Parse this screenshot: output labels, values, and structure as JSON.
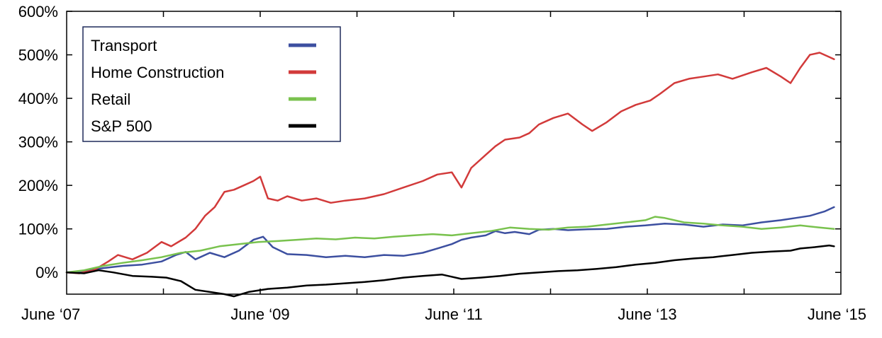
{
  "chart_data": {
    "type": "line",
    "title": "",
    "xlabel": "",
    "ylabel": "",
    "x_ticks": [
      {
        "value": 2007.42,
        "label": "June ‘07"
      },
      {
        "value": 2009.42,
        "label": "June ‘09"
      },
      {
        "value": 2011.42,
        "label": "June ‘11"
      },
      {
        "value": 2013.42,
        "label": "June ‘13"
      },
      {
        "value": 2015.42,
        "label": "June ‘15"
      }
    ],
    "y_ticks": [
      {
        "value": 0,
        "label": "0%"
      },
      {
        "value": 100,
        "label": "100%"
      },
      {
        "value": 200,
        "label": "200%"
      },
      {
        "value": 300,
        "label": "300%"
      },
      {
        "value": 400,
        "label": "400%"
      },
      {
        "value": 500,
        "label": "500%"
      },
      {
        "value": 600,
        "label": "600%"
      }
    ],
    "xlim": [
      2007.42,
      2015.42
    ],
    "ylim": [
      -50,
      600
    ],
    "grid": false,
    "legend": "top-left",
    "series": [
      {
        "name": "Transport",
        "color": "#3c4fa0",
        "points": [
          [
            2007.42,
            0
          ],
          [
            2007.6,
            3
          ],
          [
            2007.8,
            10
          ],
          [
            2008.0,
            15
          ],
          [
            2008.2,
            18
          ],
          [
            2008.4,
            25
          ],
          [
            2008.55,
            40
          ],
          [
            2008.65,
            47
          ],
          [
            2008.75,
            30
          ],
          [
            2008.9,
            45
          ],
          [
            2009.05,
            35
          ],
          [
            2009.2,
            50
          ],
          [
            2009.35,
            75
          ],
          [
            2009.45,
            82
          ],
          [
            2009.55,
            58
          ],
          [
            2009.7,
            42
          ],
          [
            2009.9,
            40
          ],
          [
            2010.1,
            35
          ],
          [
            2010.3,
            38
          ],
          [
            2010.5,
            35
          ],
          [
            2010.7,
            40
          ],
          [
            2010.9,
            38
          ],
          [
            2011.1,
            45
          ],
          [
            2011.25,
            55
          ],
          [
            2011.4,
            65
          ],
          [
            2011.5,
            75
          ],
          [
            2011.6,
            80
          ],
          [
            2011.75,
            85
          ],
          [
            2011.85,
            95
          ],
          [
            2011.95,
            90
          ],
          [
            2012.05,
            93
          ],
          [
            2012.2,
            88
          ],
          [
            2012.3,
            98
          ],
          [
            2012.45,
            100
          ],
          [
            2012.6,
            97
          ],
          [
            2012.8,
            99
          ],
          [
            2013.0,
            100
          ],
          [
            2013.2,
            105
          ],
          [
            2013.4,
            108
          ],
          [
            2013.6,
            112
          ],
          [
            2013.8,
            110
          ],
          [
            2014.0,
            105
          ],
          [
            2014.2,
            110
          ],
          [
            2014.4,
            108
          ],
          [
            2014.6,
            115
          ],
          [
            2014.8,
            120
          ],
          [
            2014.95,
            125
          ],
          [
            2015.1,
            130
          ],
          [
            2015.25,
            140
          ],
          [
            2015.35,
            150
          ]
        ]
      },
      {
        "name": "Home Construction",
        "color": "#d23a3a",
        "points": [
          [
            2007.42,
            0
          ],
          [
            2007.55,
            -2
          ],
          [
            2007.7,
            5
          ],
          [
            2007.85,
            25
          ],
          [
            2007.95,
            40
          ],
          [
            2008.1,
            30
          ],
          [
            2008.25,
            45
          ],
          [
            2008.4,
            70
          ],
          [
            2008.5,
            60
          ],
          [
            2008.65,
            80
          ],
          [
            2008.75,
            100
          ],
          [
            2008.85,
            130
          ],
          [
            2008.95,
            150
          ],
          [
            2009.05,
            185
          ],
          [
            2009.15,
            190
          ],
          [
            2009.25,
            200
          ],
          [
            2009.35,
            210
          ],
          [
            2009.42,
            220
          ],
          [
            2009.5,
            170
          ],
          [
            2009.6,
            165
          ],
          [
            2009.7,
            175
          ],
          [
            2009.85,
            165
          ],
          [
            2010.0,
            170
          ],
          [
            2010.15,
            160
          ],
          [
            2010.3,
            165
          ],
          [
            2010.5,
            170
          ],
          [
            2010.7,
            180
          ],
          [
            2010.9,
            195
          ],
          [
            2011.1,
            210
          ],
          [
            2011.25,
            225
          ],
          [
            2011.4,
            230
          ],
          [
            2011.5,
            195
          ],
          [
            2011.6,
            240
          ],
          [
            2011.75,
            270
          ],
          [
            2011.85,
            290
          ],
          [
            2011.95,
            305
          ],
          [
            2012.1,
            310
          ],
          [
            2012.2,
            320
          ],
          [
            2012.3,
            340
          ],
          [
            2012.45,
            355
          ],
          [
            2012.6,
            365
          ],
          [
            2012.75,
            340
          ],
          [
            2012.85,
            325
          ],
          [
            2013.0,
            345
          ],
          [
            2013.15,
            370
          ],
          [
            2013.3,
            385
          ],
          [
            2013.45,
            395
          ],
          [
            2013.55,
            410
          ],
          [
            2013.7,
            435
          ],
          [
            2013.85,
            445
          ],
          [
            2014.0,
            450
          ],
          [
            2014.15,
            455
          ],
          [
            2014.3,
            445
          ],
          [
            2014.5,
            460
          ],
          [
            2014.65,
            470
          ],
          [
            2014.8,
            450
          ],
          [
            2014.9,
            435
          ],
          [
            2015.0,
            470
          ],
          [
            2015.1,
            500
          ],
          [
            2015.2,
            505
          ],
          [
            2015.3,
            495
          ],
          [
            2015.35,
            490
          ]
        ]
      },
      {
        "name": "Retail",
        "color": "#79c24e",
        "points": [
          [
            2007.42,
            0
          ],
          [
            2007.6,
            5
          ],
          [
            2007.8,
            15
          ],
          [
            2008.0,
            22
          ],
          [
            2008.2,
            28
          ],
          [
            2008.4,
            35
          ],
          [
            2008.6,
            45
          ],
          [
            2008.8,
            50
          ],
          [
            2009.0,
            60
          ],
          [
            2009.2,
            65
          ],
          [
            2009.4,
            70
          ],
          [
            2009.6,
            72
          ],
          [
            2009.8,
            75
          ],
          [
            2010.0,
            78
          ],
          [
            2010.2,
            76
          ],
          [
            2010.4,
            80
          ],
          [
            2010.6,
            78
          ],
          [
            2010.8,
            82
          ],
          [
            2011.0,
            85
          ],
          [
            2011.2,
            88
          ],
          [
            2011.4,
            85
          ],
          [
            2011.6,
            90
          ],
          [
            2011.8,
            95
          ],
          [
            2012.0,
            103
          ],
          [
            2012.2,
            100
          ],
          [
            2012.4,
            98
          ],
          [
            2012.6,
            103
          ],
          [
            2012.8,
            105
          ],
          [
            2013.0,
            110
          ],
          [
            2013.2,
            115
          ],
          [
            2013.4,
            120
          ],
          [
            2013.5,
            128
          ],
          [
            2013.6,
            125
          ],
          [
            2013.8,
            115
          ],
          [
            2014.0,
            112
          ],
          [
            2014.2,
            108
          ],
          [
            2014.4,
            105
          ],
          [
            2014.6,
            100
          ],
          [
            2014.8,
            103
          ],
          [
            2015.0,
            108
          ],
          [
            2015.2,
            103
          ],
          [
            2015.35,
            100
          ]
        ]
      },
      {
        "name": "S&P 500",
        "color": "#000000",
        "points": [
          [
            2007.42,
            0
          ],
          [
            2007.6,
            -2
          ],
          [
            2007.75,
            5
          ],
          [
            2007.9,
            0
          ],
          [
            2008.1,
            -8
          ],
          [
            2008.3,
            -10
          ],
          [
            2008.45,
            -12
          ],
          [
            2008.6,
            -20
          ],
          [
            2008.75,
            -40
          ],
          [
            2008.9,
            -45
          ],
          [
            2009.05,
            -50
          ],
          [
            2009.15,
            -55
          ],
          [
            2009.3,
            -45
          ],
          [
            2009.5,
            -38
          ],
          [
            2009.7,
            -35
          ],
          [
            2009.9,
            -30
          ],
          [
            2010.1,
            -28
          ],
          [
            2010.3,
            -25
          ],
          [
            2010.5,
            -22
          ],
          [
            2010.7,
            -18
          ],
          [
            2010.9,
            -12
          ],
          [
            2011.1,
            -8
          ],
          [
            2011.3,
            -5
          ],
          [
            2011.5,
            -15
          ],
          [
            2011.7,
            -12
          ],
          [
            2011.9,
            -8
          ],
          [
            2012.1,
            -3
          ],
          [
            2012.3,
            0
          ],
          [
            2012.5,
            3
          ],
          [
            2012.7,
            5
          ],
          [
            2012.9,
            8
          ],
          [
            2013.1,
            12
          ],
          [
            2013.3,
            18
          ],
          [
            2013.5,
            22
          ],
          [
            2013.7,
            28
          ],
          [
            2013.9,
            32
          ],
          [
            2014.1,
            35
          ],
          [
            2014.3,
            40
          ],
          [
            2014.5,
            45
          ],
          [
            2014.7,
            48
          ],
          [
            2014.9,
            50
          ],
          [
            2015.0,
            55
          ],
          [
            2015.15,
            58
          ],
          [
            2015.3,
            62
          ],
          [
            2015.35,
            60
          ]
        ]
      }
    ]
  }
}
